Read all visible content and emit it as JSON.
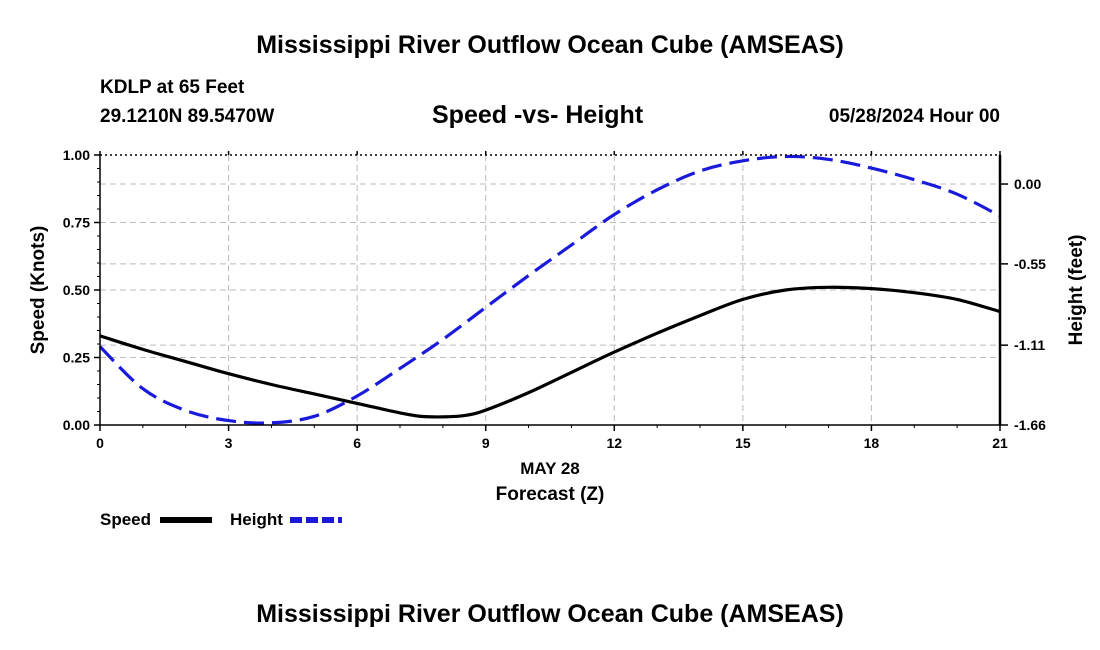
{
  "page": {
    "main_title": "Mississippi River Outflow Ocean Cube (AMSEAS)",
    "bottom_title": "Mississippi River Outflow Ocean Cube (AMSEAS)",
    "station": "KDLP at 65 Feet",
    "coords": "29.1210N  89.5470W",
    "datetime": "05/28/2024 Hour 00"
  },
  "chart_data": {
    "type": "line",
    "title": "Speed -vs- Height",
    "xlabel": "Forecast (Z)",
    "xdate": "MAY 28",
    "ylabel": "Speed (Knots)",
    "y2label": "Height (feet)",
    "xlim": [
      0,
      21
    ],
    "ylim": [
      0,
      1
    ],
    "y2lim": [
      -1.66,
      0.2
    ],
    "xticks": [
      "0",
      "3",
      "6",
      "9",
      "12",
      "15",
      "18",
      "21"
    ],
    "yticks": [
      "0.00",
      "0.25",
      "0.50",
      "0.75",
      "1.00"
    ],
    "y2ticks": [
      "-1.66",
      "-1.11",
      "-0.55",
      "0.00"
    ],
    "grid": true,
    "legend_placement": "bottom-left",
    "colors": {
      "speed": "#000000",
      "height": "#1a1adc",
      "grid": "#bbbbbb"
    },
    "series": [
      {
        "name": "Speed",
        "axis": "left",
        "style": "solid",
        "x": [
          0,
          1,
          2,
          3,
          4,
          5,
          6,
          7,
          7.5,
          8,
          8.5,
          9,
          10,
          11,
          12,
          13,
          14,
          15,
          16,
          17,
          18,
          19,
          20,
          21
        ],
        "values": [
          0.33,
          0.28,
          0.235,
          0.19,
          0.15,
          0.115,
          0.08,
          0.045,
          0.032,
          0.03,
          0.035,
          0.055,
          0.12,
          0.195,
          0.27,
          0.34,
          0.405,
          0.465,
          0.5,
          0.51,
          0.505,
          0.49,
          0.465,
          0.42
        ]
      },
      {
        "name": "Height",
        "axis": "right",
        "style": "dashed",
        "x": [
          0,
          1,
          2,
          3,
          4,
          5,
          6,
          7,
          8,
          9,
          10,
          11,
          12,
          13,
          14,
          15,
          16,
          17,
          18,
          19,
          20,
          21
        ],
        "values": [
          -1.12,
          -1.41,
          -1.56,
          -1.63,
          -1.645,
          -1.6,
          -1.46,
          -1.27,
          -1.07,
          -0.85,
          -0.63,
          -0.42,
          -0.21,
          -0.04,
          0.09,
          0.16,
          0.19,
          0.17,
          0.11,
          0.03,
          -0.07,
          -0.22
        ]
      }
    ]
  }
}
